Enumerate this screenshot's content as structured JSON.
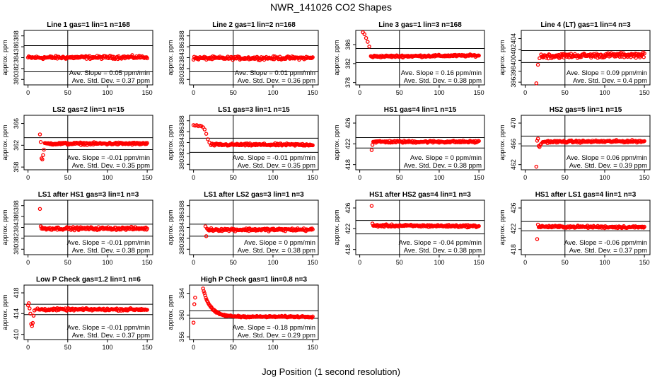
{
  "figure": {
    "title": "NWR_141026  CO2 Shapes",
    "xlabel": "Jog Position (1 second resolution)"
  },
  "chart_data": [
    {
      "type": "scatter",
      "title": "Line 1 gas=1 lin=1 n=168",
      "ylabel": "approx. ppm",
      "xlim": [
        -5,
        157
      ],
      "ylim": [
        379,
        389
      ],
      "yticks": [
        380,
        382,
        384,
        386,
        388
      ],
      "xticks": [
        0,
        50,
        100,
        150
      ],
      "refline_y": [
        386.2,
        381.4
      ],
      "vline_x": 50,
      "slope_label": "Ave. Slope = 0.05 ppm/min",
      "std_label": "Ave. Std. Dev. = 0.37 ppm",
      "series": {
        "start": 0,
        "end": 150,
        "count": 168,
        "base": 384.0,
        "drift": 0.1,
        "noise": 0.2,
        "initial": []
      }
    },
    {
      "type": "scatter",
      "title": "Line 2 gas=1 lin=2 n=168",
      "ylabel": "approx. ppm",
      "xlim": [
        -5,
        157
      ],
      "ylim": [
        379,
        389
      ],
      "yticks": [
        380,
        382,
        384,
        386,
        388
      ],
      "xticks": [
        0,
        50,
        100,
        150
      ],
      "refline_y": [
        386.2,
        381.4
      ],
      "vline_x": 50,
      "slope_label": "Ave. Slope = 0.01 ppm/min",
      "std_label": "Ave. Std. Dev. = 0.36 ppm",
      "series": {
        "start": 0,
        "end": 150,
        "count": 168,
        "base": 383.9,
        "drift": 0.05,
        "noise": 0.2,
        "initial": []
      }
    },
    {
      "type": "scatter",
      "title": "Line 3 gas=1 lin=3 n=168",
      "ylabel": "approx. ppm",
      "xlim": [
        -5,
        157
      ],
      "ylim": [
        377.5,
        389
      ],
      "yticks": [
        378,
        382,
        386
      ],
      "xticks": [
        0,
        50,
        100,
        150
      ],
      "refline_y": [
        385.2,
        382.2
      ],
      "vline_x": 50,
      "slope_label": "Ave. Slope = 0.16 ppm/min",
      "std_label": "Ave. Std. Dev. = 0.38 ppm",
      "series": {
        "start": 14,
        "end": 150,
        "count": 160,
        "base": 383.5,
        "drift": 0.2,
        "noise": 0.15,
        "initial": [
          [
            0,
            389.2
          ],
          [
            2,
            389.0
          ],
          [
            4,
            388.6
          ],
          [
            6,
            388.2
          ],
          [
            8,
            387.4
          ],
          [
            10,
            386.6
          ],
          [
            12,
            385.6
          ]
        ]
      }
    },
    {
      "type": "scatter",
      "title": "Line 4 (LT) gas=1 lin=4 n=3",
      "ylabel": "approx. ppm",
      "xlim": [
        -5,
        157
      ],
      "ylim": [
        395.5,
        405.5
      ],
      "yticks": [
        396,
        398,
        400,
        402,
        404
      ],
      "xticks": [
        0,
        50,
        100,
        150
      ],
      "refline_y": [
        401.8,
        399.6
      ],
      "vline_x": 50,
      "slope_label": "Ave. Slope = 0.09 ppm/min",
      "std_label": "Ave. Std. Dev. = 0.4 ppm",
      "series": {
        "start": 20,
        "end": 150,
        "count": 160,
        "base": 400.8,
        "drift": 0.2,
        "noise": 0.3,
        "initial": [
          [
            14,
            395.8
          ],
          [
            16,
            399.2
          ],
          [
            18,
            400.4
          ]
        ]
      }
    },
    {
      "type": "scatter",
      "title": "LS2 gas=2 lin=1 n=15",
      "ylabel": "approx. ppm",
      "xlim": [
        -5,
        157
      ],
      "ylim": [
        357.5,
        367.5
      ],
      "yticks": [
        358,
        362,
        366
      ],
      "xticks": [
        0,
        50,
        100,
        150
      ],
      "refline_y": [
        363.4,
        361.2
      ],
      "vline_x": 50,
      "slope_label": "Ave. Slope = -0.01 ppm/min",
      "std_label": "Ave. Std. Dev. = 0.35 ppm",
      "series": {
        "start": 22,
        "end": 150,
        "count": 150,
        "base": 362.3,
        "drift": 0.0,
        "noise": 0.15,
        "initial": [
          [
            15,
            364.0
          ],
          [
            16,
            362.6
          ],
          [
            17,
            359.6
          ],
          [
            18,
            359.4
          ],
          [
            19,
            360.2
          ],
          [
            20,
            361.2
          ],
          [
            21,
            362.4
          ]
        ]
      }
    },
    {
      "type": "scatter",
      "title": "LS1 gas=3 lin=1 n=15",
      "ylabel": "approx. ppm",
      "xlim": [
        -5,
        157
      ],
      "ylim": [
        379,
        389
      ],
      "yticks": [
        380,
        382,
        384,
        386,
        388
      ],
      "xticks": [
        0,
        50,
        100,
        150
      ],
      "refline_y": [
        384.8,
        382.2
      ],
      "vline_x": 50,
      "slope_label": "Ave. Slope = -0.01 ppm/min",
      "std_label": "Ave. Std. Dev. = 0.35 ppm",
      "series": {
        "start": 22,
        "end": 150,
        "count": 150,
        "base": 383.6,
        "drift": 0.0,
        "noise": 0.15,
        "initial": [
          [
            0,
            387.2
          ],
          [
            2,
            387.1
          ],
          [
            4,
            387.2
          ],
          [
            6,
            387.0
          ],
          [
            8,
            387.1
          ],
          [
            10,
            387.0
          ],
          [
            12,
            386.8
          ],
          [
            14,
            386.4
          ],
          [
            16,
            385.6
          ],
          [
            18,
            384.6
          ],
          [
            20,
            384.0
          ]
        ]
      }
    },
    {
      "type": "scatter",
      "title": "HS1 gas=4 lin=1 n=15",
      "ylabel": "approx. ppm",
      "xlim": [
        -5,
        157
      ],
      "ylim": [
        417,
        427.5
      ],
      "yticks": [
        418,
        422,
        426
      ],
      "xticks": [
        0,
        50,
        100,
        150
      ],
      "refline_y": [
        423.2,
        421.2
      ],
      "vline_x": 50,
      "slope_label": "Ave. Slope = 0 ppm/min",
      "std_label": "Ave. Std. Dev. = 0.38 ppm",
      "series": {
        "start": 17,
        "end": 150,
        "count": 155,
        "base": 422.4,
        "drift": 0.0,
        "noise": 0.15,
        "initial": [
          [
            15,
            420.8
          ],
          [
            16,
            421.8
          ]
        ]
      }
    },
    {
      "type": "scatter",
      "title": "HS2 gas=5 lin=1 n=15",
      "ylabel": "approx. ppm",
      "xlim": [
        -5,
        157
      ],
      "ylim": [
        461,
        471.5
      ],
      "yticks": [
        462,
        466,
        470
      ],
      "xticks": [
        0,
        50,
        100,
        150
      ],
      "refline_y": [
        467.5,
        465.6
      ],
      "vline_x": 50,
      "slope_label": "Ave. Slope = 0.06 ppm/min",
      "std_label": "Ave. Std. Dev. = 0.39 ppm",
      "series": {
        "start": 22,
        "end": 150,
        "count": 150,
        "base": 466.4,
        "drift": 0.1,
        "noise": 0.15,
        "initial": [
          [
            14,
            461.6
          ],
          [
            15,
            466.6
          ],
          [
            16,
            467.0
          ],
          [
            17,
            465.6
          ],
          [
            18,
            465.4
          ],
          [
            19,
            465.8
          ],
          [
            20,
            466.0
          ]
        ]
      }
    },
    {
      "type": "scatter",
      "title": "LS1 after HS1 gas=3 lin=1 n=3",
      "ylabel": "approx. ppm",
      "xlim": [
        -5,
        157
      ],
      "ylim": [
        379,
        389
      ],
      "yticks": [
        380,
        382,
        384,
        386,
        388
      ],
      "xticks": [
        0,
        50,
        100,
        150
      ],
      "refline_y": [
        384.6,
        382.4
      ],
      "vline_x": 50,
      "slope_label": "Ave. Slope = -0.01 ppm/min",
      "std_label": "Ave. Std. Dev. = 0.38 ppm",
      "series": {
        "start": 17,
        "end": 150,
        "count": 155,
        "base": 383.8,
        "drift": 0.0,
        "noise": 0.18,
        "initial": [
          [
            15,
            387.4
          ],
          [
            16,
            384.2
          ]
        ]
      }
    },
    {
      "type": "scatter",
      "title": "LS1 after LS2 gas=3 lin=1 n=3",
      "ylabel": "approx. ppm",
      "xlim": [
        -5,
        157
      ],
      "ylim": [
        379,
        389
      ],
      "yticks": [
        380,
        382,
        384,
        386,
        388
      ],
      "xticks": [
        0,
        50,
        100,
        150
      ],
      "refline_y": [
        384.6,
        382.4
      ],
      "vline_x": 50,
      "slope_label": "Ave. Slope = 0 ppm/min",
      "std_label": "Ave. Std. Dev. = 0.38 ppm",
      "series": {
        "start": 17,
        "end": 150,
        "count": 155,
        "base": 383.6,
        "drift": 0.0,
        "noise": 0.18,
        "initial": [
          [
            15,
            384.2
          ],
          [
            16,
            382.4
          ]
        ]
      }
    },
    {
      "type": "scatter",
      "title": "HS1 after HS2 gas=4 lin=1 n=3",
      "ylabel": "approx. ppm",
      "xlim": [
        -5,
        157
      ],
      "ylim": [
        417,
        427.5
      ],
      "yticks": [
        418,
        422,
        426
      ],
      "xticks": [
        0,
        50,
        100,
        150
      ],
      "refline_y": [
        423.6,
        421.0
      ],
      "vline_x": 50,
      "slope_label": "Ave. Slope = -0.04 ppm/min",
      "std_label": "Ave. Std. Dev. = 0.38 ppm",
      "series": {
        "start": 17,
        "end": 150,
        "count": 155,
        "base": 422.6,
        "drift": -0.1,
        "noise": 0.15,
        "initial": [
          [
            15,
            426.4
          ],
          [
            16,
            423.0
          ]
        ]
      }
    },
    {
      "type": "scatter",
      "title": "HS1 after LS1 gas=4 lin=1 n=3",
      "ylabel": "approx. ppm",
      "xlim": [
        -5,
        157
      ],
      "ylim": [
        417,
        427.5
      ],
      "yticks": [
        418,
        422,
        426
      ],
      "xticks": [
        0,
        50,
        100,
        150
      ],
      "refline_y": [
        423.4,
        421.6
      ],
      "vline_x": 50,
      "slope_label": "Ave. Slope = -0.06 ppm/min",
      "std_label": "Ave. Std. Dev. = 0.37 ppm",
      "series": {
        "start": 17,
        "end": 150,
        "count": 155,
        "base": 422.4,
        "drift": -0.1,
        "noise": 0.15,
        "initial": [
          [
            15,
            420.0
          ],
          [
            16,
            422.8
          ]
        ]
      }
    },
    {
      "type": "scatter",
      "title": "Low P Check gas=1.2 lin=1 n=6",
      "ylabel": "approx. ppm",
      "xlim": [
        -5,
        157
      ],
      "ylim": [
        409,
        419.5
      ],
      "yticks": [
        410,
        414,
        418
      ],
      "xticks": [
        0,
        50,
        100,
        150
      ],
      "refline_y": [
        415.8,
        413.8
      ],
      "vline_x": 50,
      "slope_label": "Ave. Slope = -0.01 ppm/min",
      "std_label": "Ave. Std. Dev. = 0.37 ppm",
      "series": {
        "start": 14,
        "end": 150,
        "count": 150,
        "base": 414.8,
        "drift": 0.0,
        "noise": 0.15,
        "initial": [
          [
            0,
            415.6
          ],
          [
            1,
            416.0
          ],
          [
            2,
            415.0
          ],
          [
            3,
            414.0
          ],
          [
            4,
            412.0
          ],
          [
            5,
            411.6
          ],
          [
            6,
            412.2
          ],
          [
            7,
            413.6
          ],
          [
            8,
            414.6
          ],
          [
            10,
            414.8
          ],
          [
            12,
            415.0
          ]
        ]
      }
    },
    {
      "type": "scatter",
      "title": "High P Check gas=1 lin=0.8 n=3",
      "ylabel": "approx. ppm",
      "xlim": [
        -5,
        157
      ],
      "ylim": [
        355.5,
        365.5
      ],
      "yticks": [
        356,
        360,
        364
      ],
      "xticks": [
        0,
        50,
        100,
        150
      ],
      "refline_y": [
        360.8,
        359.4
      ],
      "vline_x": 50,
      "slope_label": "Ave. Slope = -0.18 ppm/min",
      "std_label": "Ave. Std. Dev. = 0.29 ppm",
      "series": {
        "start": 0,
        "end": 0,
        "count": 0,
        "base": 359.8,
        "drift": 0.0,
        "noise": 0.0,
        "initial": []
      },
      "decay": {
        "start": 12,
        "end": 150,
        "count": 160,
        "base": 359.7,
        "amp": 5.2,
        "tau": 9,
        "noise": 0.1,
        "extra": [
          [
            0,
            358.6
          ],
          [
            1,
            362.0
          ],
          [
            2,
            363.2
          ]
        ]
      }
    }
  ]
}
